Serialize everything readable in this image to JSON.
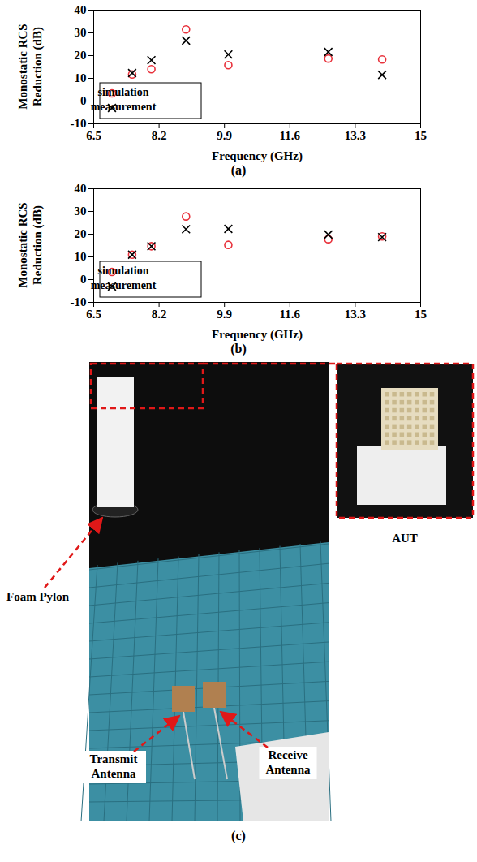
{
  "chart_data": [
    {
      "type": "scatter",
      "caption": "(a)",
      "x_label": "Frequency (GHz)",
      "y_label": "Monostatic RCS Reduction (dB)",
      "xlim": [
        6.5,
        15
      ],
      "xticks": [
        6.5,
        8.2,
        9.9,
        11.6,
        13.3,
        15
      ],
      "ylim": [
        -10,
        40
      ],
      "yticks": [
        -10,
        0,
        10,
        20,
        30,
        40
      ],
      "grid": false,
      "legend": "lower left",
      "series": [
        {
          "name": "simulation",
          "color": "#e8303a",
          "marker": "circle",
          "x": [
            7.5,
            8.0,
            8.9,
            10.0,
            12.6,
            14.0
          ],
          "values": [
            11.7,
            14.0,
            31.5,
            15.8,
            18.7,
            18.3
          ]
        },
        {
          "name": "measurement",
          "color": "#000000",
          "marker": "times",
          "x": [
            7.5,
            8.0,
            8.9,
            10.0,
            12.6,
            14.0
          ],
          "values": [
            12.3,
            18.0,
            26.6,
            20.5,
            21.6,
            11.5
          ]
        }
      ]
    },
    {
      "type": "scatter",
      "caption": "(b)",
      "x_label": "Frequency (GHz)",
      "y_label": "Monostatic RCS Reduction (dB)",
      "xlim": [
        6.5,
        15
      ],
      "xticks": [
        6.5,
        8.2,
        9.9,
        11.6,
        13.3,
        15
      ],
      "ylim": [
        -10,
        40
      ],
      "yticks": [
        -10,
        0,
        10,
        20,
        30,
        40
      ],
      "grid": false,
      "legend": "lower left",
      "series": [
        {
          "name": "simulation",
          "color": "#e8303a",
          "marker": "circle",
          "x": [
            7.5,
            8.0,
            8.9,
            10.0,
            12.6,
            14.0
          ],
          "values": [
            11.0,
            14.7,
            27.8,
            15.3,
            17.8,
            19.0
          ]
        },
        {
          "name": "measurement",
          "color": "#000000",
          "marker": "times",
          "x": [
            7.5,
            8.0,
            8.9,
            10.0,
            12.6,
            14.0
          ],
          "values": [
            11.0,
            14.7,
            22.2,
            22.3,
            19.8,
            18.7
          ]
        }
      ]
    }
  ],
  "panel_c": {
    "caption": "(c)",
    "labels": [
      "Foam Pylon",
      "Transmit Antenna",
      "Receive Antenna"
    ],
    "inset_label": "AUT"
  }
}
